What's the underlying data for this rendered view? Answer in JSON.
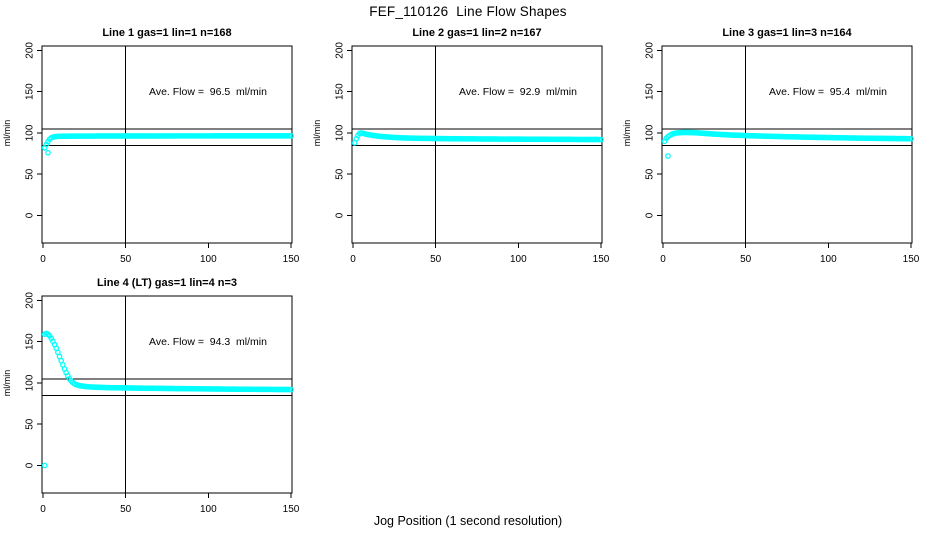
{
  "figure": {
    "main_title": "FEF_110126  Line Flow Shapes",
    "x_axis_label": "Jog Position (1 second resolution)",
    "background": "#ffffff",
    "point_color": "#00ffff",
    "line_color": "#000000"
  },
  "chart_data": [
    {
      "type": "scatter",
      "title": "Line 1 gas=1 lin=1 n=168",
      "annotation": "Ave. Flow =  96.5  ml/min",
      "ave_flow": 96.5,
      "n": 168,
      "ylabel": "ml/min",
      "xlim": [
        0,
        150
      ],
      "ylim": [
        0,
        200
      ],
      "xticks": [
        0,
        50,
        100,
        150
      ],
      "yticks": [
        0,
        50,
        100,
        150,
        200
      ],
      "hlines": [
        105,
        85
      ],
      "vline": 50,
      "series_keypoints": [
        [
          1,
          82
        ],
        [
          2,
          86
        ],
        [
          3,
          89.5
        ],
        [
          4,
          92.5
        ],
        [
          5,
          94
        ],
        [
          6,
          95
        ],
        [
          8,
          95.8
        ],
        [
          12,
          96
        ],
        [
          20,
          96.2
        ],
        [
          40,
          96.3
        ],
        [
          60,
          96.3
        ],
        [
          80,
          96.4
        ],
        [
          100,
          96.4
        ],
        [
          120,
          96.5
        ],
        [
          150,
          96.5
        ]
      ],
      "outliers": [
        [
          3,
          76
        ]
      ]
    },
    {
      "type": "scatter",
      "title": "Line 2 gas=1 lin=2 n=167",
      "annotation": "Ave. Flow =  92.9  ml/min",
      "ave_flow": 92.9,
      "n": 167,
      "ylabel": "ml/min",
      "xlim": [
        0,
        150
      ],
      "ylim": [
        0,
        200
      ],
      "xticks": [
        0,
        50,
        100,
        150
      ],
      "yticks": [
        0,
        50,
        100,
        150,
        200
      ],
      "hlines": [
        105,
        85
      ],
      "vline": 50,
      "series_keypoints": [
        [
          1,
          88
        ],
        [
          2,
          93
        ],
        [
          3,
          97
        ],
        [
          4,
          99.5
        ],
        [
          5,
          100
        ],
        [
          7,
          99
        ],
        [
          9,
          98
        ],
        [
          12,
          97
        ],
        [
          15,
          96.2
        ],
        [
          20,
          95.2
        ],
        [
          25,
          94.5
        ],
        [
          30,
          94
        ],
        [
          40,
          93.5
        ],
        [
          60,
          93
        ],
        [
          80,
          92.7
        ],
        [
          100,
          92.5
        ],
        [
          120,
          92.3
        ],
        [
          150,
          92
        ]
      ],
      "outliers": []
    },
    {
      "type": "scatter",
      "title": "Line 3 gas=1 lin=3 n=164",
      "annotation": "Ave. Flow =  95.4  ml/min",
      "ave_flow": 95.4,
      "n": 164,
      "ylabel": "ml/min",
      "xlim": [
        0,
        150
      ],
      "ylim": [
        0,
        200
      ],
      "xticks": [
        0,
        50,
        100,
        150
      ],
      "yticks": [
        0,
        50,
        100,
        150,
        200
      ],
      "hlines": [
        105,
        85
      ],
      "vline": 50,
      "series_keypoints": [
        [
          1,
          90
        ],
        [
          2,
          93.5
        ],
        [
          3,
          95.5
        ],
        [
          4,
          97
        ],
        [
          6,
          99
        ],
        [
          8,
          100
        ],
        [
          12,
          100.5
        ],
        [
          16,
          100.5
        ],
        [
          20,
          100.2
        ],
        [
          25,
          99.5
        ],
        [
          30,
          98.7
        ],
        [
          40,
          97.6
        ],
        [
          50,
          96.8
        ],
        [
          60,
          96.2
        ],
        [
          80,
          95.2
        ],
        [
          100,
          94.4
        ],
        [
          120,
          93.7
        ],
        [
          150,
          93
        ]
      ],
      "outliers": [
        [
          3,
          72
        ]
      ]
    },
    {
      "type": "scatter",
      "title": "Line 4 (LT) gas=1 lin=4 n=3",
      "annotation": "Ave. Flow =  94.3  ml/min",
      "ave_flow": 94.3,
      "n": 3,
      "ylabel": "ml/min",
      "xlim": [
        0,
        150
      ],
      "ylim": [
        0,
        200
      ],
      "xticks": [
        0,
        50,
        100,
        150
      ],
      "yticks": [
        0,
        50,
        100,
        150,
        200
      ],
      "hlines": [
        105,
        85
      ],
      "vline": 50,
      "series_keypoints": [
        [
          1,
          159
        ],
        [
          2,
          160
        ],
        [
          3,
          159
        ],
        [
          4,
          157
        ],
        [
          5,
          154
        ],
        [
          6,
          150.5
        ],
        [
          7,
          146.5
        ],
        [
          8,
          142
        ],
        [
          9,
          137
        ],
        [
          10,
          132
        ],
        [
          11,
          127
        ],
        [
          12,
          122
        ],
        [
          13,
          117
        ],
        [
          14,
          112.5
        ],
        [
          15,
          108.5
        ],
        [
          16,
          105
        ],
        [
          17,
          102.5
        ],
        [
          18,
          100.5
        ],
        [
          19,
          99
        ],
        [
          20,
          98
        ],
        [
          22,
          96.8
        ],
        [
          25,
          95.8
        ],
        [
          30,
          95
        ],
        [
          40,
          94.3
        ],
        [
          60,
          93.7
        ],
        [
          80,
          93.2
        ],
        [
          100,
          92.8
        ],
        [
          120,
          92.4
        ],
        [
          150,
          92
        ]
      ],
      "outliers": [
        [
          1,
          0
        ]
      ]
    }
  ]
}
